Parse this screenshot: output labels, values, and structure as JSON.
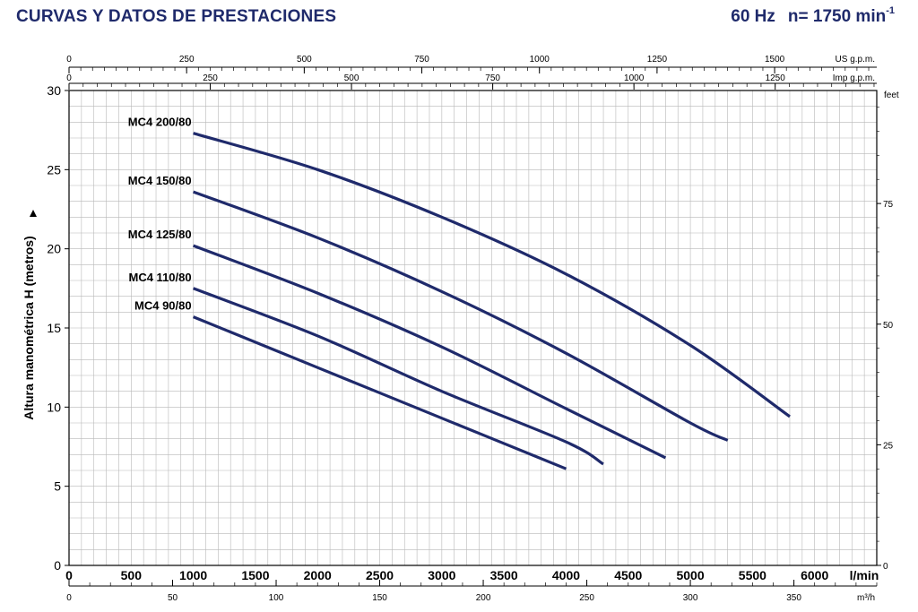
{
  "header": {
    "title": "CURVAS Y DATOS DE PRESTACIONES",
    "frequency": "60 Hz",
    "speed": "n= 1750 min",
    "speed_exponent": "-1"
  },
  "colors": {
    "curve": "#1f2a6b",
    "grid": "#b8b8b8",
    "axis": "#000000",
    "title": "#1f2a6b"
  },
  "chart_data": {
    "type": "line",
    "ylabel": "Altura manométrica H (metros)",
    "ylim": [
      0,
      30
    ],
    "y_ticks": [
      0,
      5,
      10,
      15,
      20,
      25,
      30
    ],
    "xlim": [
      0,
      6500
    ],
    "x_unit": "l/min",
    "x_ticks": [
      0,
      500,
      1000,
      1500,
      2000,
      2500,
      3000,
      3500,
      4000,
      4500,
      5000,
      5500,
      6000
    ],
    "grid": true,
    "right_axis": {
      "unit": "feet",
      "ticks": [
        0,
        25,
        50,
        75
      ],
      "factor": 3.2808
    },
    "top_axes": [
      {
        "unit": "US g.p.m.",
        "ticks": [
          0,
          250,
          500,
          750,
          1000,
          1250,
          1500
        ],
        "factor": 0.26417
      },
      {
        "unit": "Imp g.p.m.",
        "ticks": [
          0,
          250,
          500,
          750,
          1000,
          1250
        ],
        "factor": 0.21997
      }
    ],
    "bottom_axis2": {
      "unit": "m³/h",
      "ticks": [
        0,
        50,
        100,
        150,
        200,
        250,
        300,
        350
      ],
      "factor": 0.06
    },
    "series": [
      {
        "name": "MC4 200/80",
        "x": [
          1000,
          2000,
          3000,
          4000,
          5000,
          5800
        ],
        "y": [
          27.3,
          25.0,
          22.0,
          18.4,
          13.9,
          9.4
        ]
      },
      {
        "name": "MC4 150/80",
        "x": [
          1000,
          2000,
          3000,
          4000,
          5000,
          5300
        ],
        "y": [
          23.6,
          20.7,
          17.3,
          13.4,
          9.0,
          7.9
        ]
      },
      {
        "name": "MC4 125/80",
        "x": [
          1000,
          2000,
          3000,
          4000,
          4800
        ],
        "y": [
          20.2,
          17.2,
          13.8,
          9.9,
          6.8
        ]
      },
      {
        "name": "MC4 110/80",
        "x": [
          1000,
          2000,
          3000,
          4000,
          4300
        ],
        "y": [
          17.5,
          14.5,
          11.0,
          7.8,
          6.4
        ]
      },
      {
        "name": "MC4 90/80",
        "x": [
          1000,
          2000,
          3000,
          4000
        ],
        "y": [
          15.7,
          12.5,
          9.3,
          6.1
        ]
      }
    ]
  }
}
